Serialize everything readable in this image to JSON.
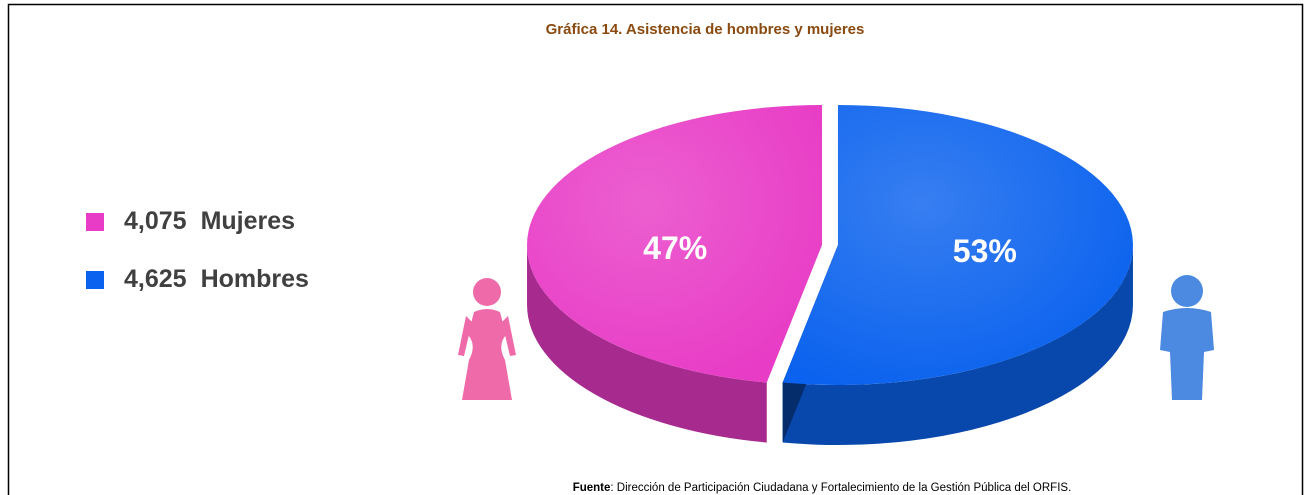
{
  "chart_data": {
    "type": "pie",
    "title": "Gráfica 14. Asistencia de hombres y mujeres",
    "categories": [
      "Mujeres",
      "Hombres"
    ],
    "counts": [
      "4,075",
      "4,625"
    ],
    "values": [
      47,
      53
    ],
    "value_labels": [
      "47%",
      "53%"
    ],
    "colors": [
      "#e83cc6",
      "#0b62ee"
    ],
    "source_label": "Fuente",
    "source": ": Dirección de Participación Ciudadana y Fortalecimiento de la Gestión Pública del ORFIS."
  }
}
